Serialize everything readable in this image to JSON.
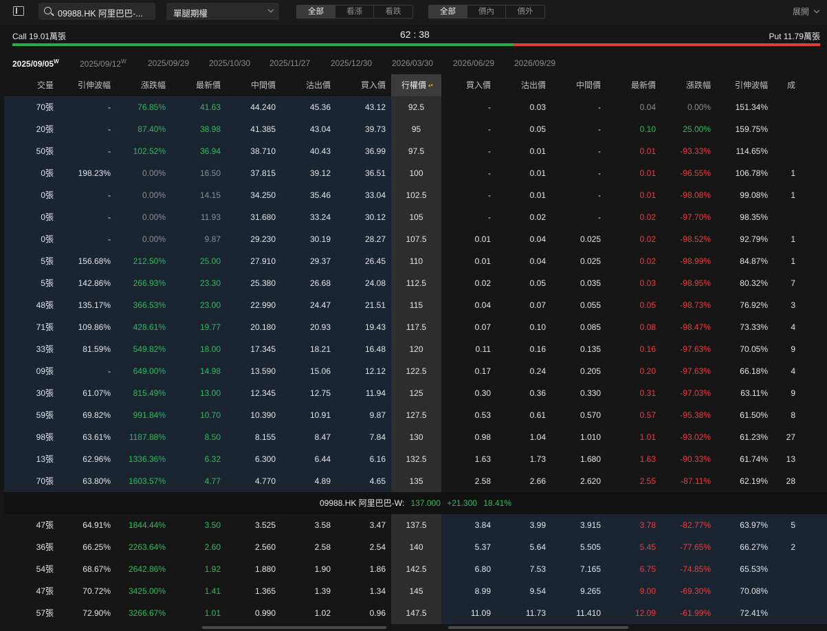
{
  "toolbar": {
    "search_value": "09988.HK 阿里巴巴-...",
    "option_type": "單腿期權",
    "trend_filter": [
      "全部",
      "看漲",
      "看跌"
    ],
    "money_filter": [
      "全部",
      "價內",
      "價外"
    ],
    "expand_label": "展開"
  },
  "ratio": {
    "call_label": "Call 19.01萬張",
    "put_label": "Put 11.79萬張",
    "ratio_text": "62 : 38",
    "call_fraction": 0.62,
    "colors": {
      "call": "#1fae4c",
      "put": "#e23c3c"
    }
  },
  "expiries": [
    {
      "date": "2025/09/05",
      "tag": "W",
      "selected": true
    },
    {
      "date": "2025/09/12",
      "tag": "W",
      "selected": false
    },
    {
      "date": "2025/09/29",
      "tag": "",
      "selected": false
    },
    {
      "date": "2025/10/30",
      "tag": "",
      "selected": false
    },
    {
      "date": "2025/11/27",
      "tag": "",
      "selected": false
    },
    {
      "date": "2025/12/30",
      "tag": "",
      "selected": false
    },
    {
      "date": "2026/03/30",
      "tag": "",
      "selected": false
    },
    {
      "date": "2026/06/29",
      "tag": "",
      "selected": false
    },
    {
      "date": "2026/09/29",
      "tag": "",
      "selected": false
    }
  ],
  "headers": {
    "call": [
      "交量",
      "引伸波幅",
      "漲跌幅",
      "最新價",
      "中間價",
      "沽出價",
      "買入價"
    ],
    "strike": "行權價",
    "put": [
      "買入價",
      "沽出價",
      "中間價",
      "最新價",
      "漲跌幅",
      "引伸波幅",
      "成"
    ]
  },
  "spot": {
    "label": "09988.HK 阿里巴巴-W:",
    "price": "137.000",
    "change": "+21.300",
    "change_pct": "18.41%"
  },
  "rows": [
    {
      "strike": "92.5",
      "call": [
        "70張",
        "-",
        "76.85%",
        "41.63",
        "44.240",
        "45.36",
        "43.12"
      ],
      "put": [
        "-",
        "0.03",
        "-",
        "0.04",
        "0.00%",
        "151.34%",
        ""
      ]
    },
    {
      "strike": "95",
      "call": [
        "20張",
        "-",
        "87.40%",
        "38.98",
        "41.385",
        "43.04",
        "39.73"
      ],
      "put": [
        "-",
        "0.05",
        "-",
        "0.10",
        "25.00%",
        "159.75%",
        ""
      ]
    },
    {
      "strike": "97.5",
      "call": [
        "50張",
        "-",
        "102.52%",
        "36.94",
        "38.710",
        "40.43",
        "36.99"
      ],
      "put": [
        "-",
        "0.01",
        "-",
        "0.01",
        "-93.33%",
        "114.65%",
        ""
      ]
    },
    {
      "strike": "100",
      "call": [
        "0張",
        "198.23%",
        "0.00%",
        "16.50",
        "37.815",
        "39.12",
        "36.51"
      ],
      "put": [
        "-",
        "0.01",
        "-",
        "0.01",
        "-96.55%",
        "106.78%",
        "1"
      ]
    },
    {
      "strike": "102.5",
      "call": [
        "0張",
        "-",
        "0.00%",
        "14.15",
        "34.250",
        "35.46",
        "33.04"
      ],
      "put": [
        "-",
        "0.01",
        "-",
        "0.01",
        "-98.08%",
        "99.08%",
        "1"
      ]
    },
    {
      "strike": "105",
      "call": [
        "0張",
        "-",
        "0.00%",
        "11.93",
        "31.680",
        "33.24",
        "30.12"
      ],
      "put": [
        "-",
        "0.02",
        "-",
        "0.02",
        "-97.70%",
        "98.35%",
        ""
      ]
    },
    {
      "strike": "107.5",
      "call": [
        "0張",
        "-",
        "0.00%",
        "9.87",
        "29.230",
        "30.19",
        "28.27"
      ],
      "put": [
        "0.01",
        "0.04",
        "0.025",
        "0.02",
        "-98.52%",
        "92.79%",
        "1"
      ]
    },
    {
      "strike": "110",
      "call": [
        "5張",
        "156.68%",
        "212.50%",
        "25.00",
        "27.910",
        "29.37",
        "26.45"
      ],
      "put": [
        "0.01",
        "0.04",
        "0.025",
        "0.02",
        "-98.99%",
        "84.87%",
        "1"
      ]
    },
    {
      "strike": "112.5",
      "call": [
        "5張",
        "142.86%",
        "266.93%",
        "23.30",
        "25.380",
        "26.68",
        "24.08"
      ],
      "put": [
        "0.02",
        "0.05",
        "0.035",
        "0.03",
        "-98.95%",
        "80.32%",
        "7"
      ]
    },
    {
      "strike": "115",
      "call": [
        "48張",
        "135.17%",
        "366.53%",
        "23.00",
        "22.990",
        "24.47",
        "21.51"
      ],
      "put": [
        "0.04",
        "0.07",
        "0.055",
        "0.05",
        "-98.73%",
        "76.92%",
        "3"
      ]
    },
    {
      "strike": "117.5",
      "call": [
        "71張",
        "109.86%",
        "428.61%",
        "19.77",
        "20.180",
        "20.93",
        "19.43"
      ],
      "put": [
        "0.07",
        "0.10",
        "0.085",
        "0.08",
        "-98.47%",
        "73.33%",
        "4"
      ]
    },
    {
      "strike": "120",
      "call": [
        "33張",
        "81.59%",
        "549.82%",
        "18.00",
        "17.345",
        "18.21",
        "16.48"
      ],
      "put": [
        "0.11",
        "0.16",
        "0.135",
        "0.16",
        "-97.63%",
        "70.05%",
        "9"
      ]
    },
    {
      "strike": "122.5",
      "call": [
        "09張",
        "-",
        "649.00%",
        "14.98",
        "13.590",
        "15.06",
        "12.12"
      ],
      "put": [
        "0.17",
        "0.24",
        "0.205",
        "0.20",
        "-97.63%",
        "66.18%",
        "4"
      ]
    },
    {
      "strike": "125",
      "call": [
        "30張",
        "61.07%",
        "815.49%",
        "13.00",
        "12.345",
        "12.75",
        "11.94"
      ],
      "put": [
        "0.30",
        "0.36",
        "0.330",
        "0.31",
        "-97.03%",
        "63.11%",
        "9"
      ]
    },
    {
      "strike": "127.5",
      "call": [
        "59張",
        "69.82%",
        "991.84%",
        "10.70",
        "10.390",
        "10.91",
        "9.87"
      ],
      "put": [
        "0.53",
        "0.61",
        "0.570",
        "0.57",
        "-95.38%",
        "61.50%",
        "8"
      ]
    },
    {
      "strike": "130",
      "call": [
        "98張",
        "63.61%",
        "1187.88%",
        "8.50",
        "8.155",
        "8.47",
        "7.84"
      ],
      "put": [
        "0.98",
        "1.04",
        "1.010",
        "1.01",
        "-93.02%",
        "61.23%",
        "27"
      ]
    },
    {
      "strike": "132.5",
      "call": [
        "13張",
        "62.96%",
        "1336.36%",
        "6.32",
        "6.300",
        "6.44",
        "6.16"
      ],
      "put": [
        "1.63",
        "1.73",
        "1.680",
        "1.63",
        "-90.33%",
        "61.74%",
        "13"
      ]
    },
    {
      "strike": "135",
      "call": [
        "70張",
        "63.80%",
        "1603.57%",
        "4.77",
        "4.770",
        "4.89",
        "4.65"
      ],
      "put": [
        "2.58",
        "2.66",
        "2.620",
        "2.55",
        "-87.11%",
        "62.19%",
        "28"
      ]
    },
    {
      "strike": "137.5",
      "call": [
        "47張",
        "64.91%",
        "1844.44%",
        "3.50",
        "3.525",
        "3.58",
        "3.47"
      ],
      "put": [
        "3.84",
        "3.99",
        "3.915",
        "3.78",
        "-82.77%",
        "63.97%",
        "5"
      ]
    },
    {
      "strike": "140",
      "call": [
        "36張",
        "66.25%",
        "2263.64%",
        "2.60",
        "2.560",
        "2.58",
        "2.54"
      ],
      "put": [
        "5.37",
        "5.64",
        "5.505",
        "5.45",
        "-77.65%",
        "66.27%",
        "2"
      ]
    },
    {
      "strike": "142.5",
      "call": [
        "54張",
        "68.67%",
        "2642.86%",
        "1.92",
        "1.880",
        "1.90",
        "1.86"
      ],
      "put": [
        "6.80",
        "7.53",
        "7.165",
        "6.75",
        "-74.85%",
        "65.53%",
        ""
      ]
    },
    {
      "strike": "145",
      "call": [
        "47張",
        "70.72%",
        "3425.00%",
        "1.41",
        "1.365",
        "1.39",
        "1.34"
      ],
      "put": [
        "8.99",
        "9.54",
        "9.265",
        "9.00",
        "-69.30%",
        "70.08%",
        ""
      ]
    },
    {
      "strike": "147.5",
      "call": [
        "57張",
        "72.90%",
        "3266.67%",
        "1.01",
        "0.990",
        "1.02",
        "0.96"
      ],
      "put": [
        "11.09",
        "11.73",
        "11.410",
        "12.09",
        "-61.99%",
        "72.41%",
        ""
      ]
    }
  ]
}
